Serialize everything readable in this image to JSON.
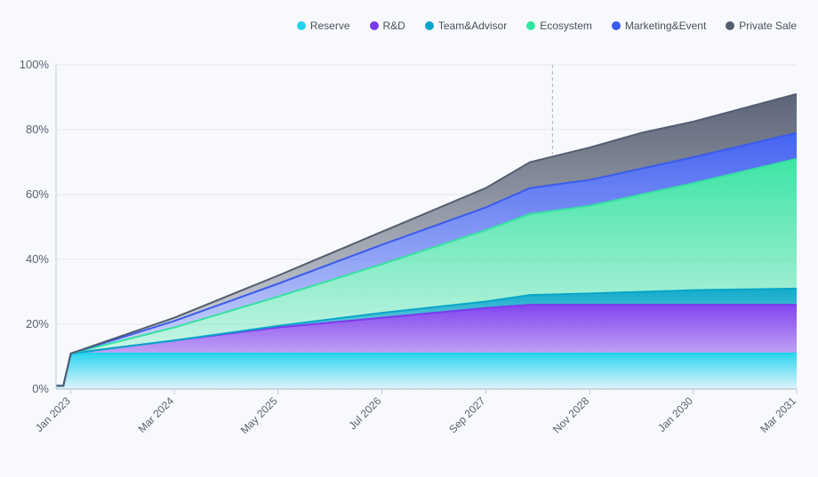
{
  "chart_data": {
    "type": "area",
    "stacked": true,
    "title": "",
    "xlabel": "",
    "ylabel": "",
    "ylim": [
      0,
      100
    ],
    "yticks": [
      "0%",
      "20%",
      "40%",
      "60%",
      "80%",
      "100%"
    ],
    "xticks": [
      {
        "label": "Jan 2023",
        "date": "2023-01"
      },
      {
        "label": "Mar 2024",
        "date": "2024-03"
      },
      {
        "label": "May 2025",
        "date": "2025-05"
      },
      {
        "label": "Jul 2026",
        "date": "2026-07"
      },
      {
        "label": "Sep 2027",
        "date": "2027-09"
      },
      {
        "label": "Nov 2028",
        "date": "2028-11"
      },
      {
        "label": "Jan 2030",
        "date": "2030-01"
      },
      {
        "label": "Mar 2031",
        "date": "2031-03"
      }
    ],
    "x": [
      "2022-11",
      "2022-12",
      "2023-01",
      "2024-03",
      "2025-05",
      "2026-07",
      "2027-09",
      "2028-03",
      "2028-11",
      "2029-06",
      "2030-01",
      "2031-03"
    ],
    "legend_position": "top-right",
    "grid": true,
    "series": [
      {
        "name": "Reserve",
        "color": "#22d3ee",
        "values": [
          1,
          1,
          11,
          11,
          11,
          11,
          11,
          11,
          11,
          11,
          11,
          11
        ]
      },
      {
        "name": "R&D",
        "color": "#7c3aed",
        "values": [
          0,
          0,
          0,
          4,
          8,
          11,
          14,
          15,
          15,
          15,
          15,
          15
        ]
      },
      {
        "name": "Team&Advisor",
        "color": "#06a6c8",
        "values": [
          0,
          0,
          0,
          0,
          0.5,
          1.5,
          2,
          3,
          3.5,
          4,
          4.5,
          5
        ]
      },
      {
        "name": "Ecosystem",
        "color": "#34e3a0",
        "values": [
          0,
          0,
          0,
          4,
          9,
          15,
          22,
          25,
          27,
          30,
          33,
          40
        ]
      },
      {
        "name": "Marketing&Event",
        "color": "#3a5bf0",
        "values": [
          0,
          0,
          0,
          2,
          4,
          6,
          7,
          8,
          8,
          8,
          8,
          8
        ]
      },
      {
        "name": "Private Sale",
        "color": "#545d70",
        "values": [
          0,
          0,
          0,
          1,
          2.5,
          4,
          6,
          8,
          10,
          11,
          11,
          12
        ]
      }
    ]
  }
}
